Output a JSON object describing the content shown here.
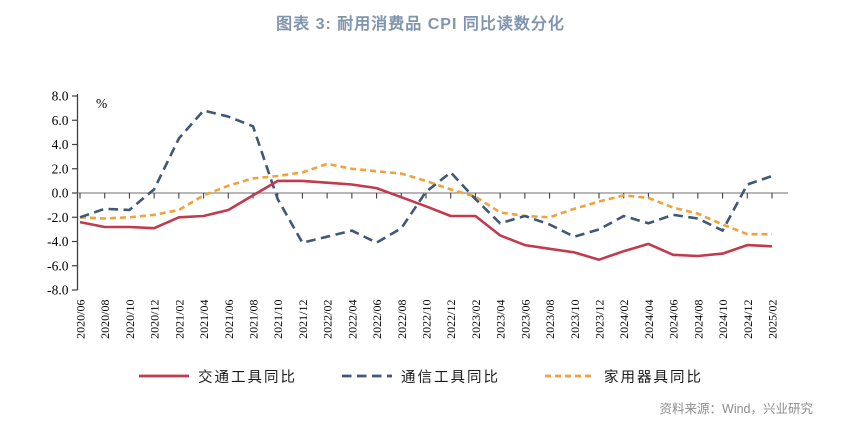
{
  "title": "图表 3: 耐用消费品 CPI 同比读数分化",
  "title_color": "#8094AD",
  "source_note": "资料来源：Wind，兴业研究",
  "chart_data": {
    "type": "line",
    "title": "耐用消费品 CPI 同比读数分化",
    "unit_label": "%",
    "xlabel": "",
    "ylabel": "%",
    "ylim": [
      -8.0,
      8.0
    ],
    "ytick_step": 2.0,
    "ytick_labels": [
      "8.0",
      "6.0",
      "4.0",
      "2.0",
      "0.0",
      "-2.0",
      "-4.0",
      "-6.0",
      "-8.0"
    ],
    "grid": "zero-baseline-only",
    "legend_position": "bottom",
    "axis_color": "#404040",
    "zero_line_color": "#8c8c8c",
    "categories": [
      "2020/06",
      "2020/08",
      "2020/10",
      "2020/12",
      "2021/02",
      "2021/04",
      "2021/06",
      "2021/08",
      "2021/10",
      "2021/12",
      "2022/02",
      "2022/04",
      "2022/06",
      "2022/08",
      "2022/10",
      "2022/12",
      "2023/02",
      "2023/04",
      "2023/06",
      "2023/08",
      "2023/10",
      "2023/12",
      "2024/02",
      "2024/04",
      "2024/06",
      "2024/08",
      "2024/10",
      "2024/12",
      "2025/02"
    ],
    "series": [
      {
        "name": "交通工具同比",
        "color": "#C13A4D",
        "line_style": "solid",
        "values": [
          -2.4,
          -2.8,
          -2.8,
          -2.9,
          -2.0,
          -1.9,
          -1.4,
          -0.2,
          1.0,
          1.0,
          0.85,
          0.7,
          0.4,
          -0.35,
          -1.1,
          -1.9,
          -1.9,
          -3.5,
          -4.3,
          -4.6,
          -4.9,
          -5.5,
          -4.8,
          -4.2,
          -5.1,
          -5.2,
          -5.0,
          -4.3,
          -4.4
        ]
      },
      {
        "name": "通信工具同比",
        "color": "#3F5878",
        "line_style": "long-dash",
        "values": [
          -2.0,
          -1.3,
          -1.4,
          0.3,
          4.5,
          6.8,
          6.3,
          5.5,
          -0.5,
          -4.1,
          -3.6,
          -3.1,
          -4.1,
          -2.9,
          0.1,
          1.7,
          -0.5,
          -2.5,
          -1.9,
          -2.6,
          -3.6,
          -3.0,
          -1.9,
          -2.5,
          -1.8,
          -2.1,
          -3.1,
          0.7,
          1.4
        ]
      },
      {
        "name": "家用器具同比",
        "color": "#F0A23C",
        "line_style": "short-dash",
        "values": [
          -2.0,
          -2.1,
          -2.0,
          -1.8,
          -1.4,
          -0.2,
          0.6,
          1.2,
          1.4,
          1.7,
          2.4,
          2.0,
          1.8,
          1.6,
          1.0,
          0.3,
          -0.3,
          -1.6,
          -1.9,
          -2.0,
          -1.3,
          -0.7,
          -0.2,
          -0.4,
          -1.2,
          -1.7,
          -2.6,
          -3.4,
          -3.4
        ]
      }
    ]
  }
}
